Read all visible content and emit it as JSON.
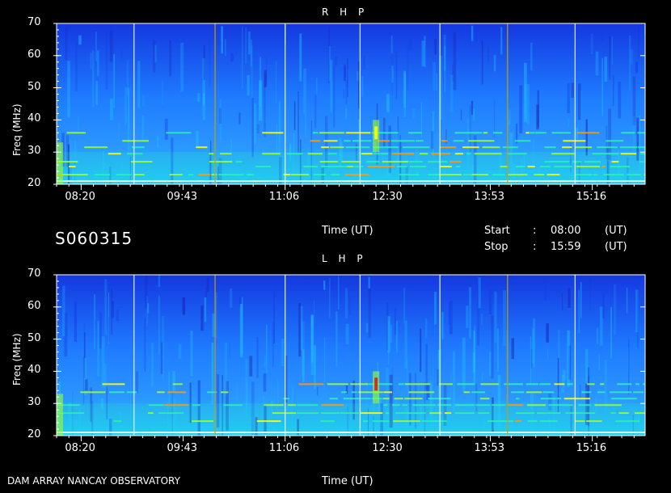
{
  "colors": {
    "background": "#000000",
    "axis": "#ffffff",
    "colormap": [
      "#1a1aa8",
      "#1438e0",
      "#1e7aff",
      "#1fc8ff",
      "#2cf0b0",
      "#9cff2a",
      "#ffff00",
      "#ff9a00",
      "#e01818"
    ]
  },
  "observation_id": "S060315",
  "start": {
    "label": "Start",
    "sep": ":",
    "time": "08:00",
    "unit": "(UT)"
  },
  "stop": {
    "label": "Stop",
    "sep": ":",
    "time": "15:59",
    "unit": "(UT)"
  },
  "footer": {
    "observatory": "DAM ARRAY   NANCAY OBSERVATORY"
  },
  "chart_data": [
    {
      "type": "heatmap",
      "title": "R H P",
      "xlabel": "Time (UT)",
      "ylabel": "Freq (MHz)",
      "x_ticks": [
        "08:20",
        "09:43",
        "11:06",
        "12:30",
        "13:53",
        "15:16"
      ],
      "y_ticks": [
        20,
        30,
        40,
        50,
        60,
        70
      ],
      "xlim": [
        "08:00",
        "15:59"
      ],
      "ylim": [
        20,
        70
      ],
      "bright_bands_mhz": [
        21,
        23,
        25.5,
        27,
        29.5,
        31.5,
        33.5,
        36
      ],
      "vertical_lines_ut": [
        "09:03",
        "10:09",
        "11:06",
        "12:07",
        "13:12",
        "14:07",
        "15:02"
      ]
    },
    {
      "type": "heatmap",
      "title": "L H P",
      "xlabel": "Time (UT)",
      "ylabel": "Freq (MHz)",
      "x_ticks": [
        "08:20",
        "09:43",
        "11:06",
        "12:30",
        "13:53",
        "15:16"
      ],
      "y_ticks": [
        20,
        30,
        40,
        50,
        60,
        70
      ],
      "xlim": [
        "08:00",
        "15:59"
      ],
      "ylim": [
        20,
        70
      ],
      "bright_bands_mhz": [
        21,
        24.5,
        27,
        29.5,
        31.5,
        33.5,
        36
      ],
      "vertical_lines_ut": [
        "09:03",
        "10:09",
        "11:06",
        "12:07",
        "13:12",
        "14:07",
        "15:02"
      ]
    }
  ]
}
